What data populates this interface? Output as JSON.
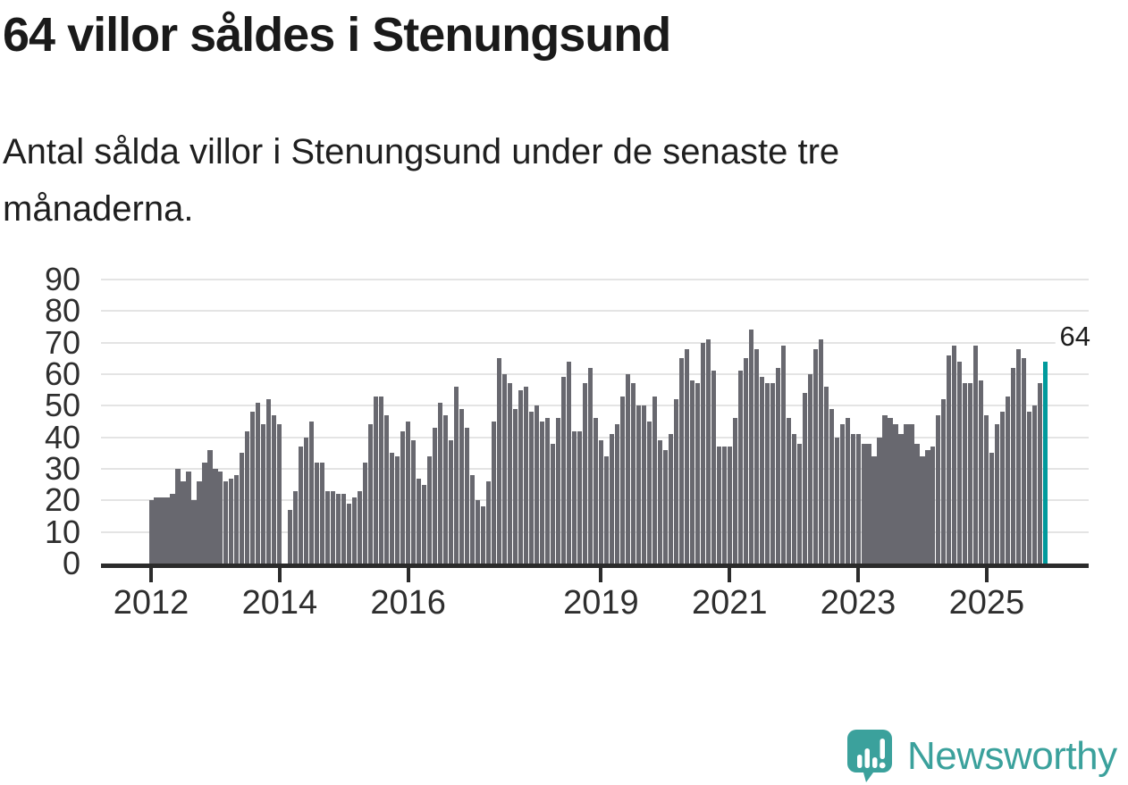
{
  "page": {
    "title": "64 villor såldes i Stenungsund",
    "subtitle": "Antal sålda villor i Stenungsund under de senaste tre månaderna."
  },
  "chart_data": {
    "type": "bar",
    "title": "64 villor såldes i Stenungsund",
    "subtitle": "Antal sålda villor i Stenungsund under de senaste tre månaderna.",
    "x_unit": "month",
    "start_year": 2012,
    "frequency": "monthly",
    "values": [
      20,
      21,
      21,
      21,
      22,
      30,
      26,
      29,
      20,
      26,
      32,
      36,
      30,
      29,
      26,
      27,
      28,
      35,
      42,
      48,
      51,
      44,
      52,
      47,
      44,
      0,
      17,
      23,
      37,
      40,
      45,
      32,
      32,
      23,
      23,
      22,
      22,
      19,
      21,
      23,
      32,
      44,
      53,
      53,
      47,
      35,
      34,
      42,
      45,
      39,
      27,
      25,
      34,
      43,
      51,
      47,
      39,
      56,
      49,
      43,
      28,
      20,
      18,
      26,
      45,
      65,
      60,
      57,
      49,
      55,
      56,
      48,
      50,
      45,
      46,
      38,
      46,
      59,
      64,
      42,
      42,
      57,
      62,
      46,
      39,
      34,
      41,
      44,
      53,
      60,
      57,
      50,
      50,
      45,
      53,
      39,
      36,
      41,
      52,
      65,
      68,
      58,
      57,
      70,
      71,
      61,
      37,
      37,
      37,
      46,
      61,
      65,
      74,
      68,
      59,
      57,
      57,
      62,
      69,
      46,
      41,
      38,
      54,
      60,
      68,
      71,
      56,
      49,
      40,
      44,
      46,
      41,
      41,
      38,
      38,
      34,
      40,
      47,
      46,
      44,
      41,
      44,
      44,
      38,
      34,
      36,
      37,
      47,
      52,
      66,
      69,
      64,
      57,
      57,
      69,
      58,
      47,
      35,
      44,
      48,
      53,
      62,
      68,
      65,
      48,
      50,
      57,
      64
    ],
    "missing_value_index": 25,
    "ylim": [
      0,
      90
    ],
    "y_ticks": [
      0,
      10,
      20,
      30,
      40,
      50,
      60,
      70,
      80,
      90
    ],
    "x_ticks": [
      {
        "label": "2012",
        "month_index": 0
      },
      {
        "label": "2014",
        "month_index": 24
      },
      {
        "label": "2016",
        "month_index": 48
      },
      {
        "label": "2019",
        "month_index": 84
      },
      {
        "label": "2021",
        "month_index": 108
      },
      {
        "label": "2023",
        "month_index": 132
      },
      {
        "label": "2025",
        "month_index": 156
      }
    ],
    "annotation": {
      "text": "64"
    },
    "bar_color": "#68686f",
    "highlight_color": "#009a9c",
    "grid_on": true,
    "legend": "none"
  },
  "footer": {
    "brand": "Newsworthy",
    "brand_color": "#3ba19c"
  }
}
